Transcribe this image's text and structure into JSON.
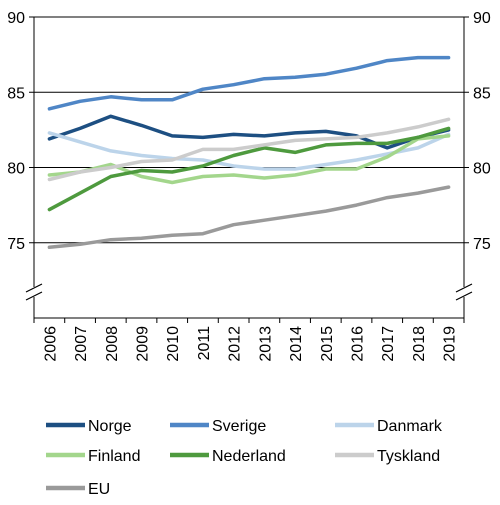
{
  "chart_data": {
    "type": "line",
    "title": "",
    "xlabel": "",
    "ylabel": "",
    "x": [
      "2006",
      "2007",
      "2008",
      "2009",
      "2010",
      "2011",
      "2012",
      "2013",
      "2014",
      "2015",
      "2016",
      "2017",
      "2018",
      "2019"
    ],
    "ylim": [
      70,
      90
    ],
    "y_ticks": [
      75,
      80,
      85,
      90
    ],
    "y_axis_break": true,
    "grid": "horizontal",
    "legend_position": "bottom",
    "series": [
      {
        "name": "Norge",
        "color": "#1d4f82",
        "values": [
          81.9,
          82.6,
          83.4,
          82.8,
          82.1,
          82.0,
          82.2,
          82.1,
          82.3,
          82.4,
          82.1,
          81.3,
          82.0,
          82.5
        ]
      },
      {
        "name": "Sverige",
        "color": "#4f86c6",
        "values": [
          83.9,
          84.4,
          84.7,
          84.5,
          84.5,
          85.2,
          85.5,
          85.9,
          86.0,
          86.2,
          86.6,
          87.1,
          87.3,
          87.3
        ]
      },
      {
        "name": "Danmark",
        "color": "#bcd4ea",
        "values": [
          82.3,
          81.7,
          81.1,
          80.8,
          80.6,
          80.5,
          80.1,
          79.9,
          79.9,
          80.2,
          80.5,
          80.9,
          81.3,
          82.2
        ]
      },
      {
        "name": "Finland",
        "color": "#a3d68c",
        "values": [
          79.5,
          79.7,
          80.2,
          79.4,
          79.0,
          79.4,
          79.5,
          79.3,
          79.5,
          79.9,
          79.9,
          80.7,
          81.9,
          82.1
        ]
      },
      {
        "name": "Nederland",
        "color": "#4e9a3e",
        "values": [
          77.2,
          78.3,
          79.4,
          79.8,
          79.7,
          80.1,
          80.8,
          81.3,
          81.0,
          81.5,
          81.6,
          81.6,
          82.0,
          82.6
        ]
      },
      {
        "name": "Tyskland",
        "color": "#cccccc",
        "values": [
          79.2,
          79.7,
          80.0,
          80.4,
          80.5,
          81.2,
          81.2,
          81.5,
          81.8,
          81.9,
          82.0,
          82.3,
          82.7,
          83.2
        ]
      },
      {
        "name": "EU",
        "color": "#9a9a9a",
        "values": [
          74.7,
          74.9,
          75.2,
          75.3,
          75.5,
          75.6,
          76.2,
          76.5,
          76.8,
          77.1,
          77.5,
          78.0,
          78.3,
          78.7
        ]
      }
    ]
  }
}
